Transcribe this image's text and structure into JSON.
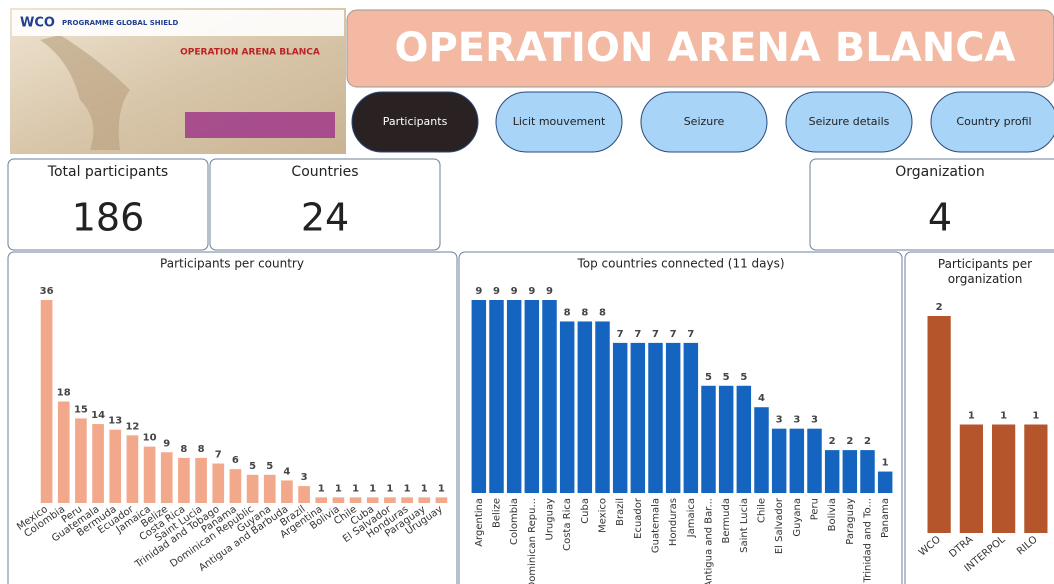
{
  "header": {
    "logo": "WCO",
    "programme": "PROGRAMME GLOBAL SHIELD",
    "image_title": "OPERATION ARENA BLANCA",
    "title": "OPERATION ARENA BLANCA"
  },
  "nav": [
    "Participants",
    "Licit mouvement",
    "Seizure",
    "Seizure details",
    "Country profil"
  ],
  "cards": [
    {
      "label": "Total participants",
      "value": 186
    },
    {
      "label": "Countries",
      "value": 24
    },
    {
      "label": "Organization",
      "value": 4
    }
  ],
  "chart_data": [
    {
      "type": "bar",
      "title": "Participants per country",
      "color": "#f2a98b",
      "categories": [
        "Mexico",
        "Colombia",
        "Peru",
        "Guatemala",
        "Bermuda",
        "Ecuador",
        "Jamaica",
        "Belize",
        "Costa Rica",
        "Saint Lucia",
        "Trinidad and Tobago",
        "Panama",
        "Dominican Republic",
        "Guyana",
        "Antigua and Barbuda",
        "Brazil",
        "Argentina",
        "Bolivia",
        "Chile",
        "Cuba",
        "El Salvador",
        "Honduras",
        "Paraguay",
        "Uruguay"
      ],
      "values": [
        36,
        18,
        15,
        14,
        13,
        12,
        10,
        9,
        8,
        8,
        7,
        6,
        5,
        5,
        4,
        3,
        1,
        1,
        1,
        1,
        1,
        1,
        1,
        1
      ]
    },
    {
      "type": "bar",
      "title": "Top countries connected (11 days)",
      "color": "#1565c0",
      "categories": [
        "Argentina",
        "Belize",
        "Colombia",
        "Dominican Repu...",
        "Uruguay",
        "Costa Rica",
        "Cuba",
        "Mexico",
        "Brazil",
        "Ecuador",
        "Guatemala",
        "Honduras",
        "Jamaica",
        "Antigua and Bar...",
        "Bermuda",
        "Saint Lucia",
        "Chile",
        "El Salvador",
        "Guyana",
        "Peru",
        "Bolivia",
        "Paraguay",
        "Trinidad and To...",
        "Panama"
      ],
      "values": [
        9,
        9,
        9,
        9,
        9,
        8,
        8,
        8,
        7,
        7,
        7,
        7,
        7,
        5,
        5,
        5,
        4,
        3,
        3,
        3,
        2,
        2,
        2,
        1
      ]
    },
    {
      "type": "bar",
      "title": "Participants per organization",
      "color": "#b4552c",
      "categories": [
        "WCO",
        "DTRA",
        "INTERPOL",
        "RILO"
      ],
      "values": [
        2,
        1,
        1,
        1
      ]
    }
  ]
}
